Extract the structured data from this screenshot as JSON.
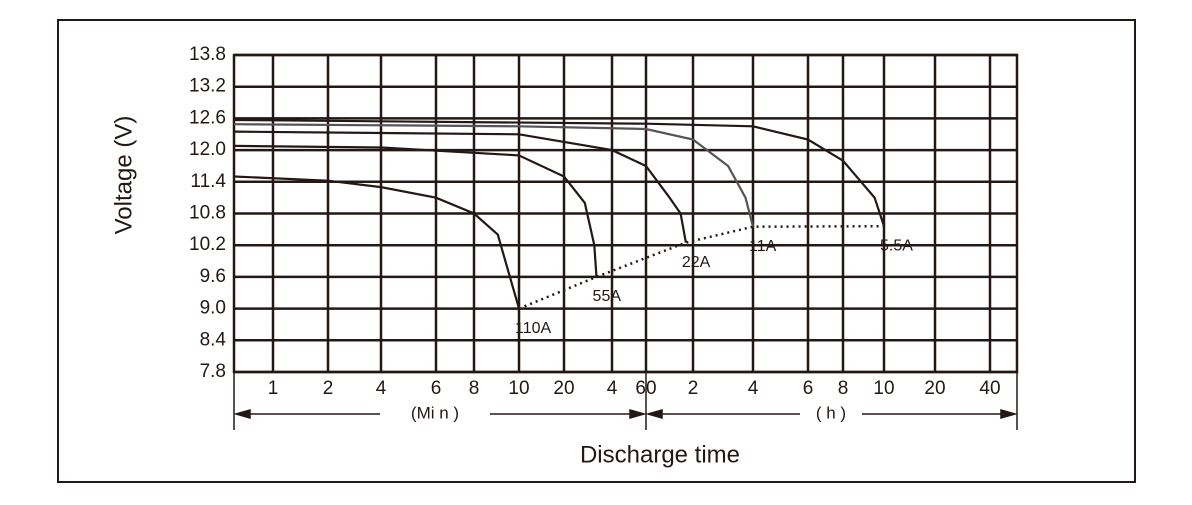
{
  "chart_data": {
    "type": "line",
    "y_label": "Voltage (V)",
    "x_label": "Discharge time",
    "x_unit_labels": [
      "(Mi n )",
      "( h )"
    ],
    "x_scale": "log",
    "xlim": [
      0.6,
      3400
    ],
    "xticks": [
      1,
      2,
      4,
      6,
      8,
      10,
      20,
      {
        "value": 40,
        "label": "4"
      },
      60,
      {
        "value": 120,
        "label": "2"
      },
      {
        "value": 240,
        "label": "4"
      },
      {
        "value": 360,
        "label": "6"
      },
      {
        "value": 480,
        "label": "8"
      },
      {
        "value": 600,
        "label": "10"
      },
      {
        "value": 1200,
        "label": "20"
      },
      {
        "value": 2400,
        "label": "40"
      }
    ],
    "ylim": [
      7.8,
      13.8
    ],
    "yticks": [
      7.8,
      8.4,
      {
        "value": 9,
        "label": "9.0"
      },
      9.6,
      10.2,
      10.8,
      11.4,
      {
        "value": 12,
        "label": "12.0"
      },
      12.6,
      13.2,
      13.8
    ],
    "grid": true,
    "series": [
      {
        "name": "110A",
        "color": "#231815",
        "x": [
          0.6,
          2,
          4,
          6,
          8,
          9,
          10
        ],
        "values": [
          11.5,
          11.42,
          11.3,
          11.1,
          10.8,
          10.4,
          9.0
        ]
      },
      {
        "name": "55A",
        "color": "#231815",
        "x": [
          0.6,
          4,
          10,
          20,
          27,
          31,
          32
        ],
        "values": [
          12.08,
          12.05,
          11.9,
          11.5,
          11.0,
          10.2,
          9.6
        ]
      },
      {
        "name": "22A",
        "color": "#231815",
        "x": [
          0.6,
          10,
          40,
          60,
          85,
          100,
          108
        ],
        "values": [
          12.35,
          12.3,
          12.0,
          11.7,
          11.1,
          10.8,
          10.25
        ]
      },
      {
        "name": "11A",
        "color": "#555555",
        "x": [
          0.6,
          10,
          60,
          120,
          180,
          220,
          240
        ],
        "values": [
          12.49,
          12.45,
          12.4,
          12.2,
          11.7,
          11.1,
          10.55
        ]
      },
      {
        "name": "5.5A",
        "color": "#231815",
        "x": [
          0.6,
          60,
          240,
          360,
          480,
          570,
          600
        ],
        "values": [
          12.57,
          12.5,
          12.45,
          12.2,
          11.8,
          11.1,
          10.56
        ]
      }
    ],
    "cutoff": {
      "color": "#231815",
      "x": [
        10,
        32,
        108,
        240,
        600
      ],
      "values": [
        9.0,
        9.6,
        10.25,
        10.55,
        10.56
      ]
    }
  }
}
